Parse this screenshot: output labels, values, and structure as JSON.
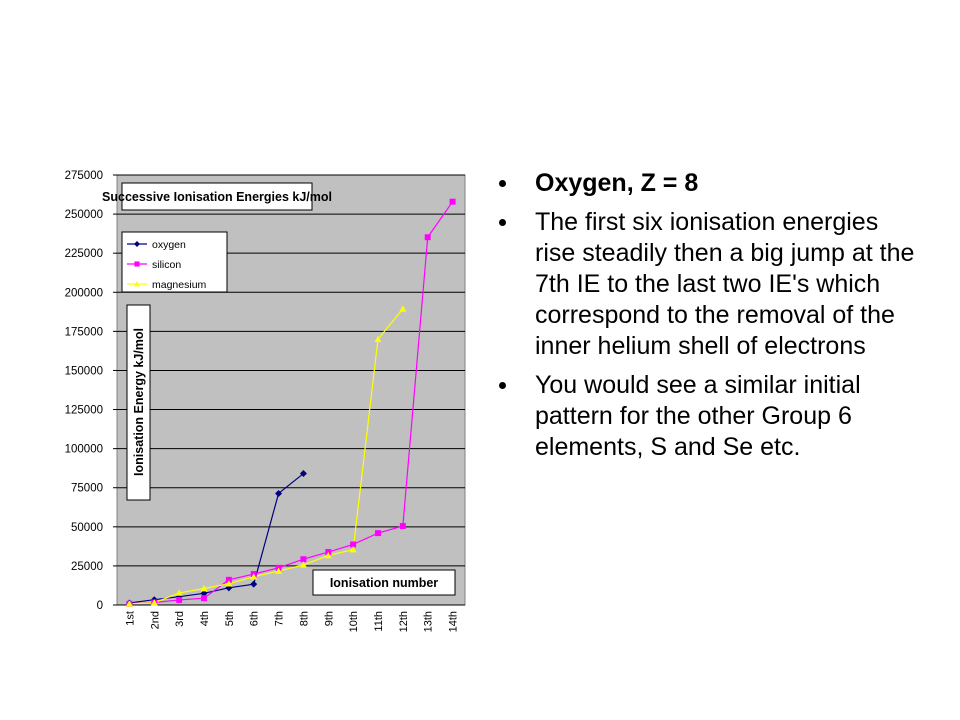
{
  "chart_data": {
    "type": "line",
    "title": "Successive Ionisation Energies kJ/mol",
    "y_label": "Ionisation Energy kJ/mol",
    "x_label": "Ionisation number",
    "categories": [
      "1st",
      "2nd",
      "3rd",
      "4th",
      "5th",
      "6th",
      "7th",
      "8th",
      "9th",
      "10th",
      "11th",
      "12th",
      "13th",
      "14th"
    ],
    "series": [
      {
        "name": "oxygen",
        "color": "#000080",
        "marker": "diamond",
        "values": [
          1314,
          3388,
          5301,
          7469,
          10990,
          13327,
          71330,
          84078,
          null,
          null,
          null,
          null,
          null,
          null
        ]
      },
      {
        "name": "silicon",
        "color": "#ff00ff",
        "marker": "square",
        "values": [
          786,
          1577,
          3232,
          4356,
          16091,
          19805,
          23780,
          29287,
          33878,
          38726,
          45962,
          50502,
          235196,
          257923
        ]
      },
      {
        "name": "magnesium",
        "color": "#ffff00",
        "marker": "triangle",
        "values": [
          738,
          1451,
          7733,
          10543,
          13630,
          18020,
          21711,
          25661,
          31653,
          35458,
          169988,
          189368,
          null,
          null
        ]
      }
    ],
    "ylim": [
      0,
      275000
    ],
    "yticks": [
      0,
      25000,
      50000,
      75000,
      100000,
      125000,
      150000,
      175000,
      200000,
      225000,
      250000,
      275000
    ],
    "grid": true,
    "legend": "upper left"
  },
  "bullets": [
    "Oxygen, Z = 8",
    "The first six ionisation energies rise steadily then a big jump at the 7th IE to the last two IE's which correspond to the removal of the inner helium shell of electrons",
    "You would see a similar initial pattern for the other Group 6 elements, S and Se etc."
  ]
}
